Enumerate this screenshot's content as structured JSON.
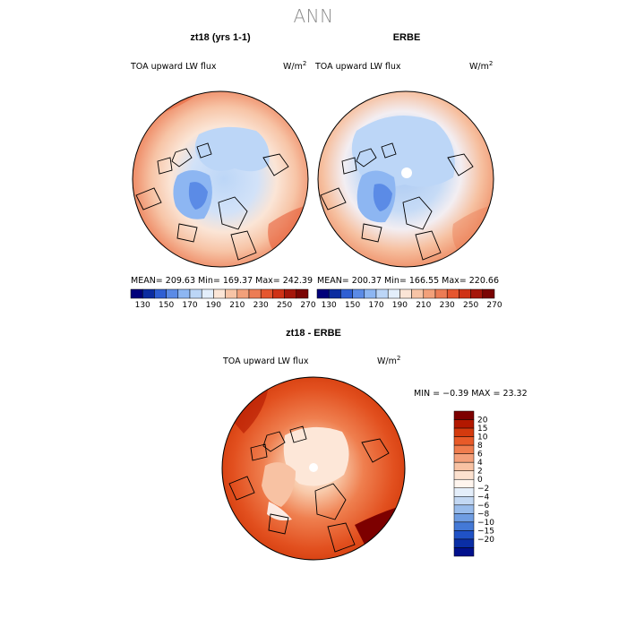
{
  "figure": {
    "title": "ANN"
  },
  "panels": [
    {
      "title": "zt18 (yrs 1-1)",
      "variable": "TOA upward LW flux",
      "units_base": "W/m",
      "units_exp": "2",
      "stats": "MEAN= 209.63   Min= 169.37   Max= 242.39"
    },
    {
      "title": "ERBE",
      "variable": "TOA upward LW flux",
      "units_base": "W/m",
      "units_exp": "2",
      "stats": "MEAN= 200.37   Min= 166.55   Max= 220.66"
    },
    {
      "title": "zt18 - ERBE",
      "variable": "TOA upward LW flux",
      "units_base": "W/m",
      "units_exp": "2",
      "stats": "MIN =   −0.39  MAX =   23.32"
    }
  ],
  "colorbar_abs": {
    "colors": [
      "#00007a",
      "#0b2ca0",
      "#2f5fd3",
      "#5b8be6",
      "#8db6f2",
      "#bcd6f7",
      "#e3eefb",
      "#fbe5d6",
      "#f7c4a6",
      "#f2a07a",
      "#ec7c55",
      "#e5562f",
      "#cf3216",
      "#a5160a",
      "#7a0403"
    ],
    "tick_labels": [
      "130",
      "150",
      "170",
      "190",
      "210",
      "230",
      "250",
      "270"
    ]
  },
  "colorbar_diff": {
    "colors": [
      "#7d0000",
      "#b31800",
      "#d43a0e",
      "#e85a28",
      "#f07d4e",
      "#f4a07a",
      "#f8c2a3",
      "#fce1cf",
      "#fff5ee",
      "#e4eefa",
      "#c3d8f3",
      "#99bceb",
      "#6f9de2",
      "#4479d6",
      "#2052c6",
      "#0a2ea6",
      "#01108c"
    ],
    "tick_labels": [
      "20",
      "15",
      "10",
      "8",
      "6",
      "4",
      "2",
      "0",
      "−2",
      "−4",
      "−6",
      "−8",
      "−10",
      "−15",
      "−20"
    ]
  },
  "colors": {
    "coast": "#000000",
    "outline": "#000000",
    "title_gray": "#8c8c8c"
  }
}
